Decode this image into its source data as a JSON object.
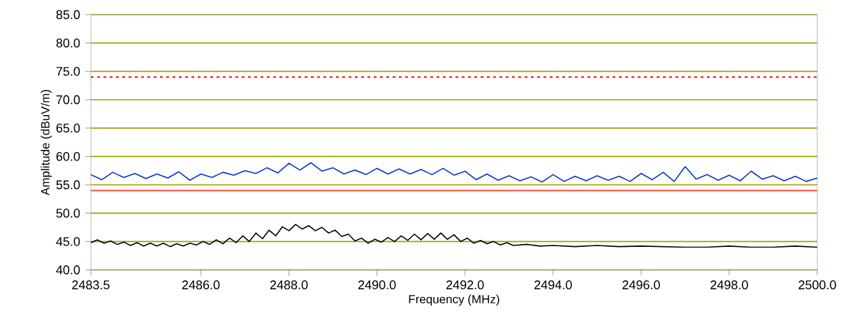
{
  "chart_data": {
    "type": "line",
    "xlabel": "Frequency (MHz)",
    "ylabel": "Amplitude (dBuV/m)",
    "xlim": [
      2483.5,
      2500
    ],
    "ylim": [
      40,
      85
    ],
    "xticks": [
      {
        "value": 2483.5,
        "label": "2483.5"
      },
      {
        "value": 2486,
        "label": "2486.0"
      },
      {
        "value": 2488,
        "label": "2488.0"
      },
      {
        "value": 2490,
        "label": "2490.0"
      },
      {
        "value": 2492,
        "label": "2492.0"
      },
      {
        "value": 2494,
        "label": "2494.0"
      },
      {
        "value": 2496,
        "label": "2496.0"
      },
      {
        "value": 2498,
        "label": "2498.0"
      },
      {
        "value": 2500,
        "label": "2500.0"
      }
    ],
    "yticks": [
      {
        "value": 40,
        "label": "40.0"
      },
      {
        "value": 45,
        "label": "45.0"
      },
      {
        "value": 50,
        "label": "50.0"
      },
      {
        "value": 55,
        "label": "55.0"
      },
      {
        "value": 60,
        "label": "60.0"
      },
      {
        "value": 65,
        "label": "65.0"
      },
      {
        "value": 70,
        "label": "70.0"
      },
      {
        "value": 75,
        "label": "75.0"
      },
      {
        "value": 80,
        "label": "80.0"
      },
      {
        "value": 85,
        "label": "85.0"
      }
    ],
    "grid": "y",
    "marker": "none",
    "line_style": "solid",
    "ref_lines": [
      {
        "axis": "y",
        "value": 74,
        "color": "#ff0000",
        "line_style": "dotted"
      },
      {
        "axis": "y",
        "value": 54,
        "color": "#ff5040",
        "line_style": "solid"
      }
    ],
    "series": [
      {
        "color": "#0033cc",
        "x": [
          2483.5,
          2483.75,
          2484.0,
          2484.25,
          2484.5,
          2484.75,
          2485.0,
          2485.25,
          2485.5,
          2485.75,
          2486.0,
          2486.25,
          2486.5,
          2486.75,
          2487.0,
          2487.25,
          2487.5,
          2487.75,
          2488.0,
          2488.25,
          2488.5,
          2488.75,
          2489.0,
          2489.25,
          2489.5,
          2489.75,
          2490.0,
          2490.25,
          2490.5,
          2490.75,
          2491.0,
          2491.25,
          2491.5,
          2491.75,
          2492.0,
          2492.25,
          2492.5,
          2492.75,
          2493.0,
          2493.25,
          2493.5,
          2493.75,
          2494.0,
          2494.25,
          2494.5,
          2494.75,
          2495.0,
          2495.25,
          2495.5,
          2495.75,
          2496.0,
          2496.25,
          2496.5,
          2496.75,
          2497.0,
          2497.25,
          2497.5,
          2497.75,
          2498.0,
          2498.25,
          2498.5,
          2498.75,
          2499.0,
          2499.25,
          2499.5,
          2499.75,
          2500.0
        ],
        "values": [
          56.8,
          55.9,
          57.2,
          56.3,
          57.0,
          56.1,
          56.9,
          56.2,
          57.3,
          55.8,
          56.9,
          56.3,
          57.2,
          56.7,
          57.5,
          57.0,
          58.0,
          57.1,
          58.8,
          57.6,
          58.9,
          57.4,
          58.0,
          56.9,
          57.6,
          56.8,
          57.9,
          56.9,
          57.8,
          56.9,
          57.7,
          56.8,
          57.9,
          56.7,
          57.4,
          55.9,
          56.9,
          55.8,
          56.6,
          55.7,
          56.4,
          55.5,
          56.8,
          55.6,
          56.5,
          55.7,
          56.6,
          55.8,
          56.5,
          55.6,
          57.0,
          55.9,
          57.2,
          55.6,
          58.2,
          56.0,
          56.8,
          55.8,
          56.7,
          55.7,
          57.4,
          56.0,
          56.6,
          55.7,
          56.5,
          55.6,
          56.2
        ]
      },
      {
        "color": "#000000",
        "x": [
          2483.5,
          2483.65,
          2483.8,
          2483.95,
          2484.1,
          2484.25,
          2484.4,
          2484.55,
          2484.7,
          2484.85,
          2485.0,
          2485.15,
          2485.3,
          2485.45,
          2485.6,
          2485.75,
          2485.9,
          2486.05,
          2486.2,
          2486.35,
          2486.5,
          2486.65,
          2486.8,
          2486.95,
          2487.1,
          2487.25,
          2487.4,
          2487.55,
          2487.7,
          2487.85,
          2488.0,
          2488.15,
          2488.3,
          2488.45,
          2488.6,
          2488.75,
          2488.9,
          2489.05,
          2489.2,
          2489.35,
          2489.5,
          2489.65,
          2489.8,
          2489.95,
          2490.1,
          2490.25,
          2490.4,
          2490.55,
          2490.7,
          2490.85,
          2491.0,
          2491.15,
          2491.3,
          2491.45,
          2491.6,
          2491.75,
          2491.9,
          2492.05,
          2492.2,
          2492.35,
          2492.5,
          2492.65,
          2492.8,
          2492.95,
          2493.1,
          2493.4,
          2493.7,
          2494.0,
          2494.5,
          2495.0,
          2495.5,
          2496.0,
          2496.5,
          2497.0,
          2497.5,
          2498.0,
          2498.5,
          2499.0,
          2499.5,
          2500.0
        ],
        "values": [
          44.8,
          45.3,
          44.7,
          45.1,
          44.5,
          44.9,
          44.3,
          44.8,
          44.2,
          44.7,
          44.2,
          44.7,
          44.1,
          44.6,
          44.2,
          44.7,
          44.4,
          45.0,
          44.5,
          45.3,
          44.6,
          45.6,
          44.8,
          46.0,
          45.0,
          46.5,
          45.5,
          47.0,
          46.0,
          47.6,
          46.9,
          48.0,
          47.2,
          47.8,
          46.9,
          47.5,
          46.5,
          47.0,
          45.9,
          46.3,
          45.1,
          45.6,
          44.7,
          45.4,
          44.9,
          45.7,
          45.0,
          46.0,
          45.2,
          46.3,
          45.3,
          46.4,
          45.4,
          46.5,
          45.4,
          46.2,
          45.0,
          45.6,
          44.7,
          45.2,
          44.6,
          45.0,
          44.4,
          44.8,
          44.3,
          44.5,
          44.2,
          44.3,
          44.1,
          44.3,
          44.1,
          44.2,
          44.1,
          44.0,
          44.0,
          44.2,
          44.0,
          44.0,
          44.2,
          44.0
        ]
      }
    ]
  }
}
